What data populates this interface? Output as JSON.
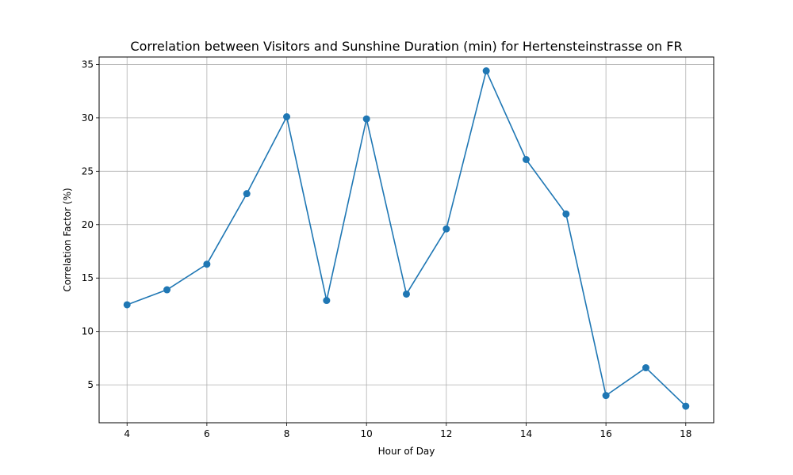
{
  "chart_data": {
    "type": "line",
    "title": "Correlation between Visitors and Sunshine Duration (min) for Hertensteinstrasse on FR",
    "xlabel": "Hour of Day",
    "ylabel": "Correlation Factor (%)",
    "xlim": [
      3.3,
      18.7
    ],
    "ylim": [
      1.45,
      35.7
    ],
    "xticks": [
      4,
      6,
      8,
      10,
      12,
      14,
      16,
      18
    ],
    "yticks": [
      5,
      10,
      15,
      20,
      25,
      30,
      35
    ],
    "grid": true,
    "marker": "circle",
    "color": "#1f77b4",
    "series": [
      {
        "x": [
          4,
          5,
          6,
          7,
          8,
          9,
          10,
          11,
          12,
          13,
          14,
          15,
          16,
          17,
          18
        ],
        "values": [
          12.5,
          13.9,
          16.3,
          22.9,
          30.1,
          12.9,
          29.9,
          13.5,
          19.6,
          34.4,
          26.1,
          21.0,
          4.0,
          6.6,
          3.0
        ]
      }
    ]
  }
}
